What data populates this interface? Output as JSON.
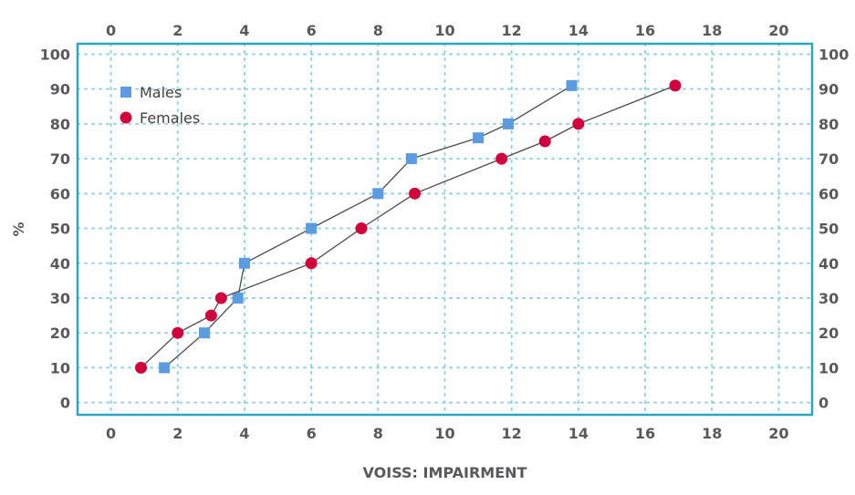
{
  "chart_data": {
    "type": "scatter",
    "title": "",
    "xlabel": "VOISS: IMPAIRMENT",
    "ylabel": "%",
    "xlim": [
      -1,
      21
    ],
    "ylim": [
      -3.5,
      103
    ],
    "x_ticks": [
      "0",
      "2",
      "4",
      "6",
      "8",
      "10",
      "12",
      "14",
      "16",
      "18",
      "20"
    ],
    "y_ticks": [
      "0",
      "10",
      "20",
      "30",
      "40",
      "50",
      "60",
      "70",
      "80",
      "90",
      "100"
    ],
    "grid": true,
    "legend_position": "top-left",
    "series": [
      {
        "name": "Males",
        "marker": "square",
        "color": "#5b9be0",
        "x": [
          1.6,
          2.8,
          3.8,
          4.0,
          6.0,
          8.0,
          9.0,
          11.0,
          11.9,
          13.8
        ],
        "y": [
          10,
          20,
          30,
          40,
          50,
          60,
          70,
          76,
          80,
          91
        ]
      },
      {
        "name": "Females",
        "marker": "circle",
        "color": "#d1003c",
        "x": [
          0.9,
          2.0,
          3.0,
          3.3,
          6.0,
          7.5,
          9.1,
          11.7,
          13.0,
          14.0,
          16.9
        ],
        "y": [
          10,
          20,
          25,
          30,
          40,
          50,
          60,
          70,
          75,
          80,
          91
        ]
      }
    ],
    "colors": {
      "frame": "#2ba6c1",
      "grid": "#8fd3e3",
      "line": "#4a4a4a"
    }
  }
}
